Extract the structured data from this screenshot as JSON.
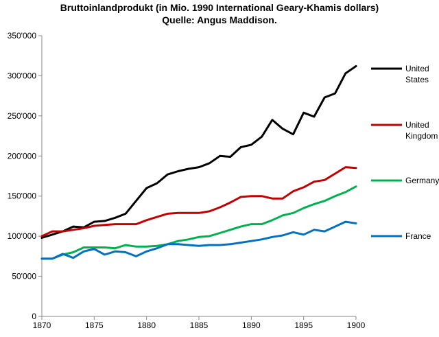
{
  "chart_data": {
    "type": "line",
    "title": "Bruttoinlandprodukt (in Mio. 1990 International Geary-Khamis dollars)",
    "subtitle": "Quelle: Angus Maddison.",
    "xlabel": "",
    "ylabel": "",
    "xlim": [
      1870,
      1900
    ],
    "ylim": [
      0,
      350000
    ],
    "x_ticks": [
      1870,
      1875,
      1880,
      1885,
      1890,
      1895,
      1900
    ],
    "y_ticks": [
      0,
      50000,
      100000,
      150000,
      200000,
      250000,
      300000,
      350000
    ],
    "y_tick_labels": [
      "0",
      "50'000",
      "100'000",
      "150'000",
      "200'000",
      "250'000",
      "300'000",
      "350'000"
    ],
    "grid": false,
    "legend_position": "right",
    "x": [
      1870,
      1871,
      1872,
      1873,
      1874,
      1875,
      1876,
      1877,
      1878,
      1879,
      1880,
      1881,
      1882,
      1883,
      1884,
      1885,
      1886,
      1887,
      1888,
      1889,
      1890,
      1891,
      1892,
      1893,
      1894,
      1895,
      1896,
      1897,
      1898,
      1899,
      1900
    ],
    "series": [
      {
        "name": "United States",
        "legend_lines": [
          "United",
          "States"
        ],
        "color": "#000000",
        "values": [
          98000,
          102000,
          106000,
          112000,
          111000,
          118000,
          119000,
          123000,
          128000,
          144000,
          160000,
          166000,
          177000,
          181000,
          184000,
          186000,
          191000,
          200000,
          199000,
          211000,
          214000,
          224000,
          245000,
          234000,
          227000,
          254000,
          249000,
          273000,
          278000,
          303000,
          312000
        ]
      },
      {
        "name": "United Kingdom",
        "legend_lines": [
          "United",
          "Kingdom"
        ],
        "color": "#c00000",
        "values": [
          100000,
          106000,
          106000,
          108000,
          110000,
          113000,
          114000,
          115000,
          115000,
          115000,
          120000,
          124000,
          128000,
          129000,
          129000,
          129000,
          131000,
          136000,
          142000,
          149000,
          150000,
          150000,
          147000,
          147000,
          156000,
          161000,
          168000,
          170000,
          178000,
          186000,
          185000
        ]
      },
      {
        "name": "Germany",
        "legend_lines": [
          "Germany"
        ],
        "color": "#00b050",
        "values": [
          72000,
          72000,
          77000,
          80000,
          86000,
          86000,
          86000,
          85000,
          89000,
          87000,
          87000,
          88000,
          90000,
          94000,
          96000,
          99000,
          100000,
          104000,
          108000,
          112000,
          115000,
          115000,
          120000,
          126000,
          129000,
          135000,
          140000,
          144000,
          150000,
          155000,
          162000
        ]
      },
      {
        "name": "France",
        "legend_lines": [
          "France"
        ],
        "color": "#0070c0",
        "values": [
          72000,
          72000,
          78000,
          73000,
          81000,
          84000,
          77000,
          81000,
          80000,
          75000,
          81000,
          85000,
          90000,
          90000,
          89000,
          88000,
          89000,
          89000,
          90000,
          92000,
          94000,
          96000,
          99000,
          101000,
          105000,
          102000,
          108000,
          106000,
          112000,
          118000,
          116000
        ]
      }
    ]
  }
}
